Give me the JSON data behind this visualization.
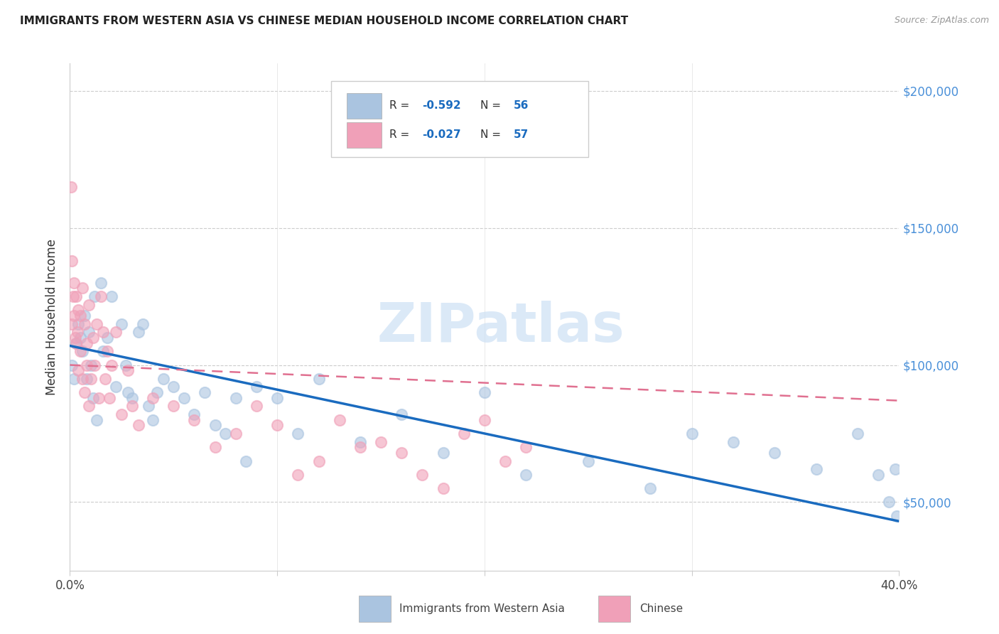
{
  "title": "IMMIGRANTS FROM WESTERN ASIA VS CHINESE MEDIAN HOUSEHOLD INCOME CORRELATION CHART",
  "source": "Source: ZipAtlas.com",
  "ylabel": "Median Household Income",
  "y_ticks": [
    50000,
    100000,
    150000,
    200000
  ],
  "y_tick_labels": [
    "$50,000",
    "$100,000",
    "$150,000",
    "$200,000"
  ],
  "x_range": [
    0.0,
    0.4
  ],
  "y_range": [
    25000,
    210000
  ],
  "blue_color": "#aac4e0",
  "pink_color": "#f0a0b8",
  "blue_line_color": "#1a6bbf",
  "pink_line_color": "#e07090",
  "watermark": "ZIPatlas",
  "blue_scatter_x": [
    0.001,
    0.002,
    0.003,
    0.004,
    0.005,
    0.006,
    0.007,
    0.008,
    0.009,
    0.01,
    0.011,
    0.012,
    0.013,
    0.015,
    0.016,
    0.018,
    0.02,
    0.022,
    0.025,
    0.027,
    0.028,
    0.03,
    0.033,
    0.035,
    0.038,
    0.04,
    0.042,
    0.045,
    0.05,
    0.055,
    0.06,
    0.065,
    0.07,
    0.075,
    0.08,
    0.085,
    0.09,
    0.1,
    0.11,
    0.12,
    0.14,
    0.16,
    0.18,
    0.2,
    0.22,
    0.25,
    0.28,
    0.3,
    0.32,
    0.34,
    0.36,
    0.38,
    0.39,
    0.395,
    0.398,
    0.399
  ],
  "blue_scatter_y": [
    100000,
    95000,
    108000,
    115000,
    110000,
    105000,
    118000,
    95000,
    112000,
    100000,
    88000,
    125000,
    80000,
    130000,
    105000,
    110000,
    125000,
    92000,
    115000,
    100000,
    90000,
    88000,
    112000,
    115000,
    85000,
    80000,
    90000,
    95000,
    92000,
    88000,
    82000,
    90000,
    78000,
    75000,
    88000,
    65000,
    92000,
    88000,
    75000,
    95000,
    72000,
    82000,
    68000,
    90000,
    60000,
    65000,
    55000,
    75000,
    72000,
    68000,
    62000,
    75000,
    60000,
    50000,
    62000,
    45000
  ],
  "pink_scatter_x": [
    0.0005,
    0.001,
    0.001,
    0.0015,
    0.002,
    0.002,
    0.0025,
    0.003,
    0.003,
    0.0035,
    0.004,
    0.004,
    0.005,
    0.005,
    0.006,
    0.006,
    0.007,
    0.007,
    0.008,
    0.008,
    0.009,
    0.009,
    0.01,
    0.011,
    0.012,
    0.013,
    0.014,
    0.015,
    0.016,
    0.017,
    0.018,
    0.019,
    0.02,
    0.022,
    0.025,
    0.028,
    0.03,
    0.033,
    0.04,
    0.05,
    0.06,
    0.07,
    0.08,
    0.09,
    0.1,
    0.11,
    0.12,
    0.13,
    0.14,
    0.15,
    0.16,
    0.17,
    0.18,
    0.19,
    0.2,
    0.21,
    0.22
  ],
  "pink_scatter_y": [
    165000,
    138000,
    115000,
    125000,
    130000,
    118000,
    110000,
    125000,
    108000,
    112000,
    120000,
    98000,
    118000,
    105000,
    128000,
    95000,
    115000,
    90000,
    108000,
    100000,
    122000,
    85000,
    95000,
    110000,
    100000,
    115000,
    88000,
    125000,
    112000,
    95000,
    105000,
    88000,
    100000,
    112000,
    82000,
    98000,
    85000,
    78000,
    88000,
    85000,
    80000,
    70000,
    75000,
    85000,
    78000,
    60000,
    65000,
    80000,
    70000,
    72000,
    68000,
    60000,
    55000,
    75000,
    80000,
    65000,
    70000
  ]
}
